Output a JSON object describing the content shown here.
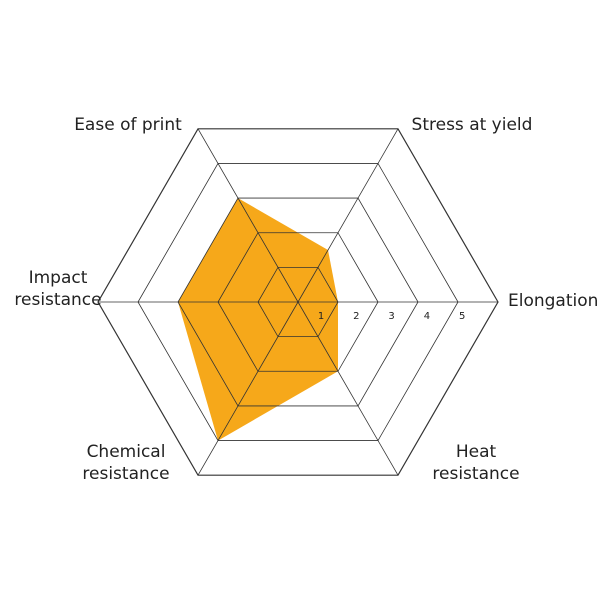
{
  "chart_data": {
    "type": "radar",
    "axes": [
      "Elongation",
      "Stress at yield",
      "Ease of print",
      "Impact resistance",
      "Chemical resistance",
      "Heat resistance"
    ],
    "axis_label_lines": [
      [
        "Elongation"
      ],
      [
        "Stress at yield"
      ],
      [
        "Ease of print"
      ],
      [
        "Impact",
        "resistance"
      ],
      [
        "Chemical",
        "resistance"
      ],
      [
        "Heat",
        "resistance"
      ]
    ],
    "series": [
      {
        "values": [
          1,
          1.5,
          3,
          3,
          4,
          2
        ]
      }
    ],
    "range": [
      0,
      5
    ],
    "ticks": [
      "1",
      "2",
      "3",
      "4",
      "5"
    ],
    "grid": true,
    "colors": {
      "fill": "#F6A81A",
      "grid": "#333333"
    }
  }
}
